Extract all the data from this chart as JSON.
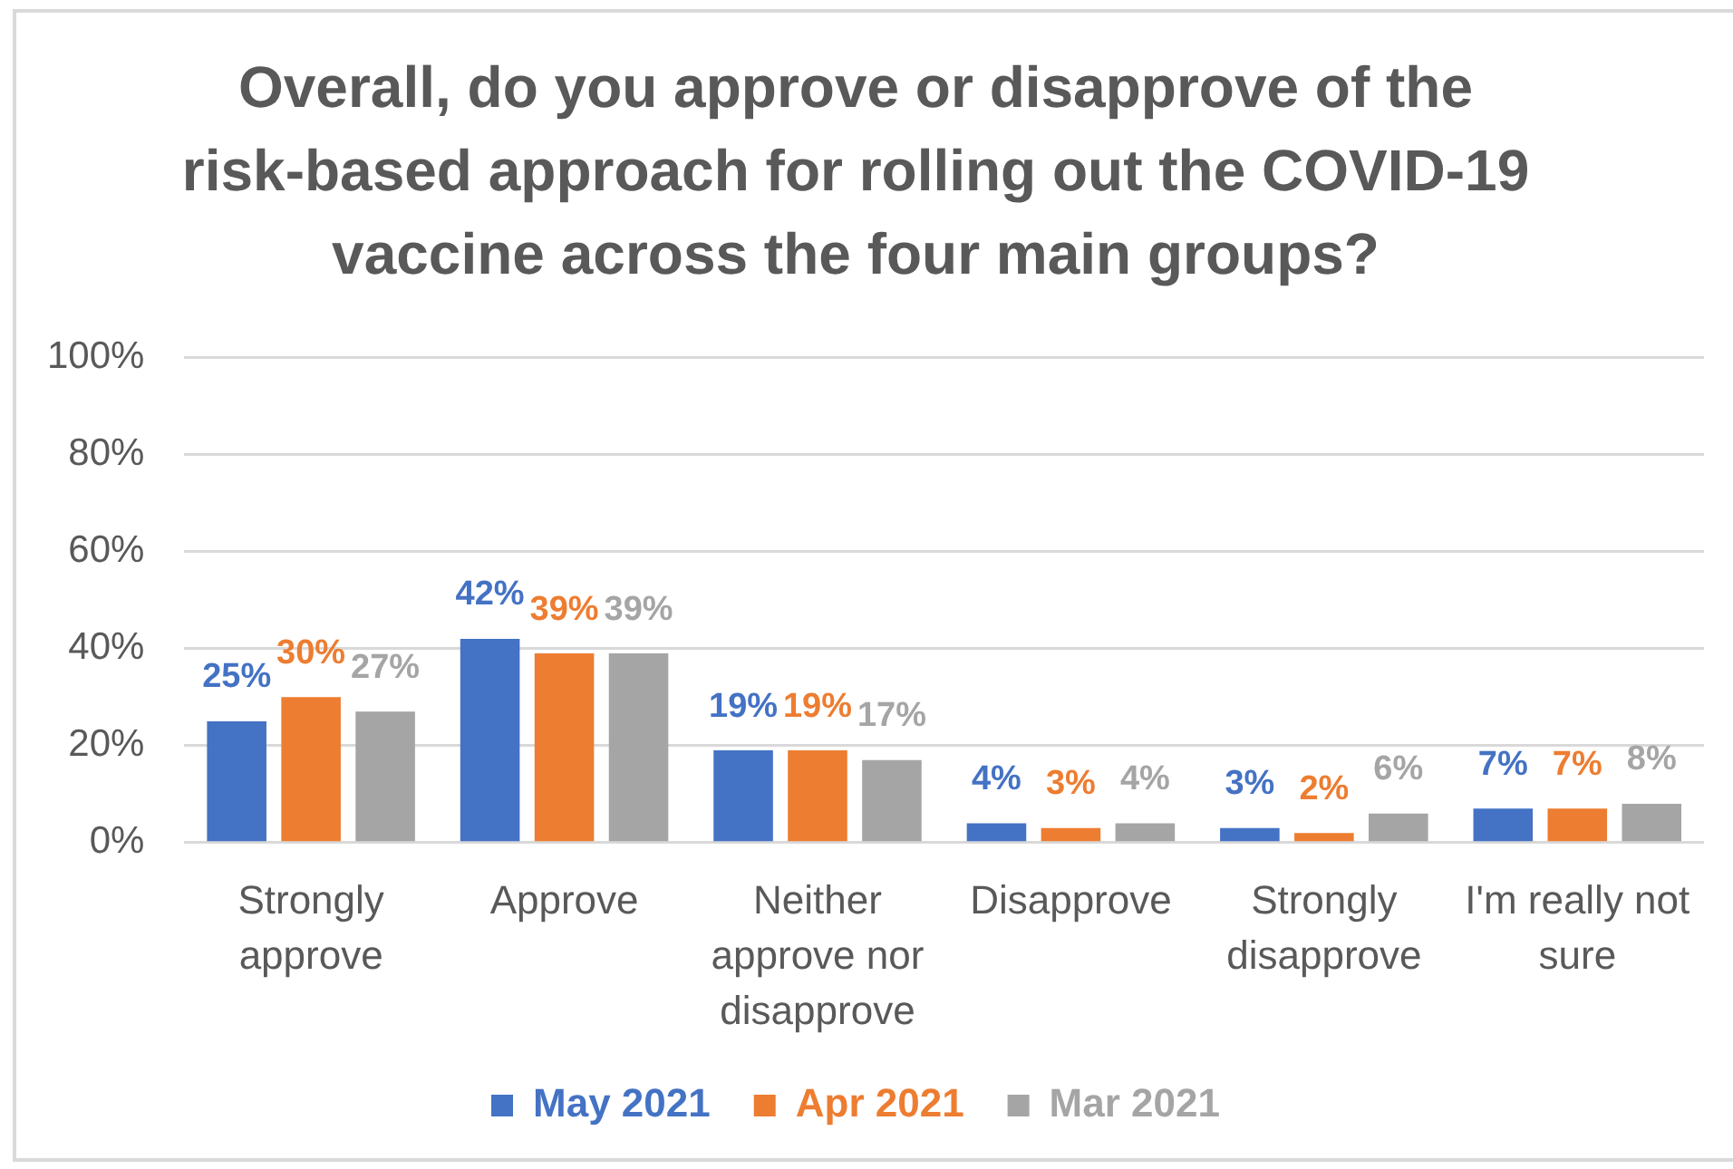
{
  "chart_data": {
    "type": "bar",
    "title": "Overall, do you approve or disapprove of the risk-based approach for rolling out the COVID-19 vaccine across the four main groups?",
    "categories": [
      "Strongly approve",
      "Approve",
      "Neither approve nor disapprove",
      "Disapprove",
      "Strongly disapprove",
      "I'm really not sure"
    ],
    "series": [
      {
        "name": "May 2021",
        "color": "#4472c4",
        "values": [
          25,
          42,
          19,
          4,
          3,
          7
        ],
        "value_labels": [
          "25%",
          "42%",
          "19%",
          "4%",
          "3%",
          "7%"
        ]
      },
      {
        "name": "Apr 2021",
        "color": "#ed7d31",
        "values": [
          30,
          39,
          19,
          3,
          2,
          7
        ],
        "value_labels": [
          "30%",
          "39%",
          "19%",
          "3%",
          "2%",
          "7%"
        ]
      },
      {
        "name": "Mar 2021",
        "color": "#a5a5a5",
        "values": [
          27,
          39,
          17,
          4,
          6,
          8
        ],
        "value_labels": [
          "27%",
          "39%",
          "17%",
          "4%",
          "6%",
          "8%"
        ]
      }
    ],
    "ylim": [
      0,
      100
    ],
    "yticks": [
      {
        "value": 0,
        "label": "0%"
      },
      {
        "value": 20,
        "label": "20%"
      },
      {
        "value": 40,
        "label": "40%"
      },
      {
        "value": 60,
        "label": "60%"
      },
      {
        "value": 80,
        "label": "80%"
      },
      {
        "value": 100,
        "label": "100%"
      }
    ],
    "grid": "y",
    "legend": "bottom"
  }
}
